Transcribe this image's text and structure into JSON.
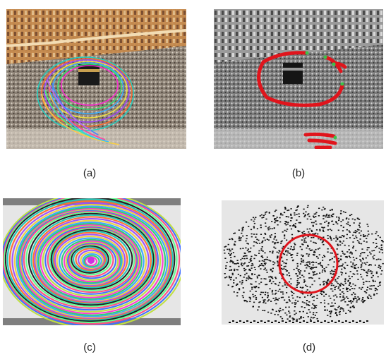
{
  "figure": {
    "panels": [
      {
        "id": "a",
        "caption": "(a)",
        "content": "photo-color-with-trajectories"
      },
      {
        "id": "b",
        "caption": "(b)",
        "content": "photo-grayscale-with-red-path"
      },
      {
        "id": "c",
        "caption": "(c)",
        "content": "concentric-colored-trajectory-rings"
      },
      {
        "id": "d",
        "caption": "(d)",
        "content": "dot-field-with-red-circle"
      }
    ]
  },
  "colors": {
    "accent_red": "#e0141c",
    "marker_green": "#3cc24a",
    "background_gray": "#e6e6e6",
    "dot_black": "#111111"
  }
}
